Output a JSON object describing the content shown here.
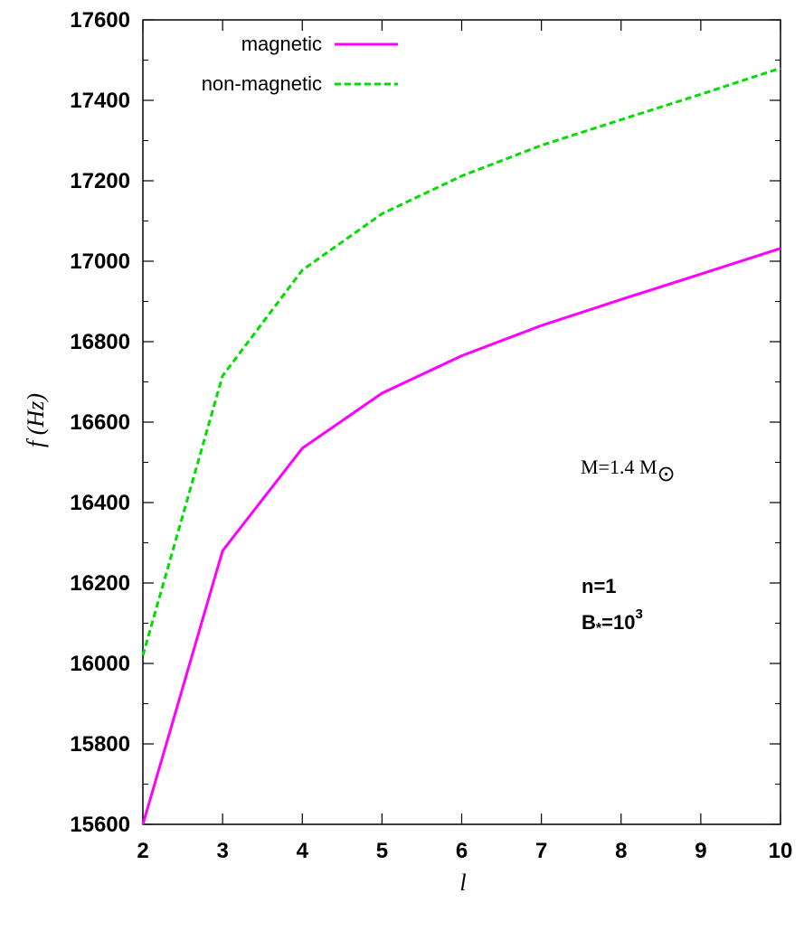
{
  "chart_data": {
    "type": "line",
    "xlabel": "l",
    "ylabel": "f (Hz)",
    "xlim": [
      2,
      10
    ],
    "ylim": [
      15600,
      17600
    ],
    "x_ticks": [
      2,
      3,
      4,
      5,
      6,
      7,
      8,
      9,
      10
    ],
    "y_ticks": [
      15600,
      15800,
      16000,
      16200,
      16400,
      16600,
      16800,
      17000,
      17200,
      17400,
      17600
    ],
    "legend_position": "top-left",
    "grid": false,
    "series": [
      {
        "name": "magnetic",
        "color": "#ff00ff",
        "style": "solid",
        "x": [
          2,
          3,
          4,
          5,
          6,
          7,
          8,
          9,
          10
        ],
        "y": [
          15600,
          16280,
          16535,
          16672,
          16765,
          16840,
          16905,
          16968,
          17032
        ]
      },
      {
        "name": "non-magnetic",
        "color": "#00dd00",
        "style": "dashed",
        "x": [
          2,
          3,
          4,
          5,
          6,
          7,
          8,
          9,
          10
        ],
        "y": [
          16020,
          16715,
          16978,
          17118,
          17212,
          17288,
          17352,
          17415,
          17480
        ]
      }
    ],
    "annotations": {
      "mass_text": "M=1.4 M",
      "sun_symbol": "⊙",
      "n_text": "n=1",
      "b_text": "B",
      "b_sub": "*",
      "b_eq": "=10",
      "b_sup": "3"
    }
  }
}
